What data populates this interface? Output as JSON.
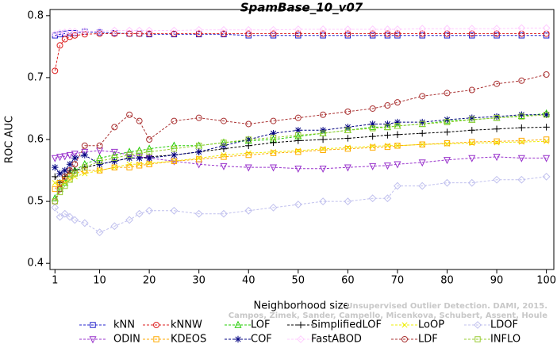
{
  "chart_data": {
    "type": "line",
    "title": "SpamBase_10_v07",
    "x_label": "Neighborhood size",
    "y_label": "ROC AUC",
    "annotations": [
      "Unsupervised Outlier Detection. DAMI, 2015.",
      "Campos, Zimek, Sander, Campello, Micenkova, Schubert, Assent, Houle"
    ],
    "xlim": [
      0,
      101.5
    ],
    "ylim": [
      0.39,
      0.81
    ],
    "xticks": [
      1,
      10,
      20,
      30,
      40,
      50,
      60,
      70,
      80,
      90,
      100
    ],
    "yticks": [
      0.4,
      0.5,
      0.6,
      0.7,
      0.8
    ],
    "x": [
      1,
      2,
      3,
      4,
      5,
      7,
      10,
      13,
      16,
      18,
      20,
      25,
      30,
      35,
      40,
      45,
      50,
      55,
      60,
      65,
      68,
      70,
      75,
      80,
      85,
      90,
      95,
      100
    ],
    "series": [
      {
        "name": "kNN",
        "color": "#2222cc",
        "marker": "square",
        "values": [
          0.768,
          0.77,
          0.771,
          0.772,
          0.772,
          0.774,
          0.773,
          0.772,
          0.771,
          0.771,
          0.77,
          0.77,
          0.77,
          0.77,
          0.768,
          0.768,
          0.768,
          0.768,
          0.768,
          0.768,
          0.768,
          0.768,
          0.768,
          0.768,
          0.768,
          0.768,
          0.768,
          0.768
        ]
      },
      {
        "name": "kNNW",
        "color": "#dd2222",
        "marker": "circle",
        "values": [
          0.711,
          0.752,
          0.762,
          0.766,
          0.768,
          0.77,
          0.771,
          0.771,
          0.771,
          0.771,
          0.771,
          0.771,
          0.771,
          0.771,
          0.771,
          0.771,
          0.771,
          0.771,
          0.771,
          0.771,
          0.771,
          0.771,
          0.771,
          0.771,
          0.771,
          0.771,
          0.771,
          0.771
        ]
      },
      {
        "name": "LOF",
        "color": "#22cc00",
        "marker": "triangle",
        "values": [
          0.505,
          0.52,
          0.53,
          0.545,
          0.55,
          0.56,
          0.57,
          0.575,
          0.58,
          0.582,
          0.585,
          0.59,
          0.59,
          0.595,
          0.598,
          0.6,
          0.605,
          0.61,
          0.615,
          0.62,
          0.62,
          0.622,
          0.625,
          0.63,
          0.632,
          0.635,
          0.638,
          0.642
        ]
      },
      {
        "name": "SimplifiedLOF",
        "color": "#000000",
        "marker": "plus",
        "values": [
          0.54,
          0.53,
          0.54,
          0.55,
          0.55,
          0.555,
          0.56,
          0.565,
          0.57,
          0.57,
          0.572,
          0.575,
          0.58,
          0.585,
          0.59,
          0.595,
          0.598,
          0.6,
          0.602,
          0.605,
          0.607,
          0.608,
          0.61,
          0.612,
          0.615,
          0.617,
          0.619,
          0.62
        ]
      },
      {
        "name": "LoOP",
        "color": "#eeee00",
        "marker": "x",
        "values": [
          0.53,
          0.525,
          0.53,
          0.535,
          0.54,
          0.545,
          0.55,
          0.555,
          0.56,
          0.56,
          0.562,
          0.565,
          0.57,
          0.575,
          0.578,
          0.58,
          0.582,
          0.585,
          0.587,
          0.589,
          0.59,
          0.59,
          0.592,
          0.593,
          0.594,
          0.595,
          0.596,
          0.597
        ]
      },
      {
        "name": "LDOF",
        "color": "#c0c0ee",
        "marker": "diamond",
        "values": [
          0.49,
          0.475,
          0.48,
          0.475,
          0.47,
          0.465,
          0.45,
          0.46,
          0.47,
          0.48,
          0.485,
          0.485,
          0.48,
          0.48,
          0.485,
          0.49,
          0.495,
          0.5,
          0.5,
          0.505,
          0.505,
          0.525,
          0.525,
          0.53,
          0.53,
          0.535,
          0.535,
          0.54
        ]
      },
      {
        "name": "ODIN",
        "color": "#9933cc",
        "marker": "triangle-down",
        "values": [
          0.57,
          0.572,
          0.573,
          0.575,
          0.577,
          0.58,
          0.582,
          0.58,
          0.575,
          0.572,
          0.57,
          0.565,
          0.56,
          0.557,
          0.555,
          0.555,
          0.553,
          0.553,
          0.555,
          0.557,
          0.558,
          0.56,
          0.563,
          0.567,
          0.57,
          0.572,
          0.57,
          0.57
        ]
      },
      {
        "name": "KDEOS",
        "color": "#ffaa00",
        "marker": "square",
        "values": [
          0.52,
          0.53,
          0.535,
          0.54,
          0.545,
          0.55,
          0.55,
          0.555,
          0.555,
          0.558,
          0.56,
          0.565,
          0.568,
          0.572,
          0.575,
          0.578,
          0.58,
          0.583,
          0.585,
          0.587,
          0.588,
          0.59,
          0.592,
          0.594,
          0.596,
          0.597,
          0.598,
          0.6
        ]
      },
      {
        "name": "COF",
        "color": "#000080",
        "marker": "star",
        "values": [
          0.555,
          0.545,
          0.55,
          0.56,
          0.57,
          0.575,
          0.56,
          0.565,
          0.57,
          0.57,
          0.57,
          0.575,
          0.58,
          0.59,
          0.6,
          0.61,
          0.615,
          0.615,
          0.62,
          0.625,
          0.625,
          0.628,
          0.628,
          0.632,
          0.635,
          0.637,
          0.64,
          0.64
        ]
      },
      {
        "name": "FastABOD",
        "color": "#ffccff",
        "marker": "diamond",
        "values": [
          0.77,
          0.772,
          0.773,
          0.774,
          0.774,
          0.775,
          0.775,
          0.776,
          0.776,
          0.776,
          0.776,
          0.776,
          0.777,
          0.777,
          0.777,
          0.777,
          0.778,
          0.778,
          0.778,
          0.778,
          0.778,
          0.778,
          0.779,
          0.779,
          0.779,
          0.779,
          0.78,
          0.78
        ]
      },
      {
        "name": "LDF",
        "color": "#aa3333",
        "marker": "circle",
        "values": [
          0.5,
          0.52,
          0.54,
          0.55,
          0.56,
          0.59,
          0.59,
          0.62,
          0.64,
          0.63,
          0.6,
          0.63,
          0.635,
          0.63,
          0.625,
          0.63,
          0.635,
          0.64,
          0.645,
          0.65,
          0.655,
          0.66,
          0.67,
          0.675,
          0.68,
          0.69,
          0.695,
          0.705
        ]
      },
      {
        "name": "INFLO",
        "color": "#99cc33",
        "marker": "square",
        "values": [
          0.5,
          0.515,
          0.525,
          0.535,
          0.545,
          0.555,
          0.565,
          0.57,
          0.575,
          0.578,
          0.58,
          0.585,
          0.59,
          0.595,
          0.6,
          0.603,
          0.607,
          0.61,
          0.615,
          0.618,
          0.62,
          0.622,
          0.625,
          0.628,
          0.632,
          0.635,
          0.637,
          0.64
        ]
      }
    ]
  }
}
